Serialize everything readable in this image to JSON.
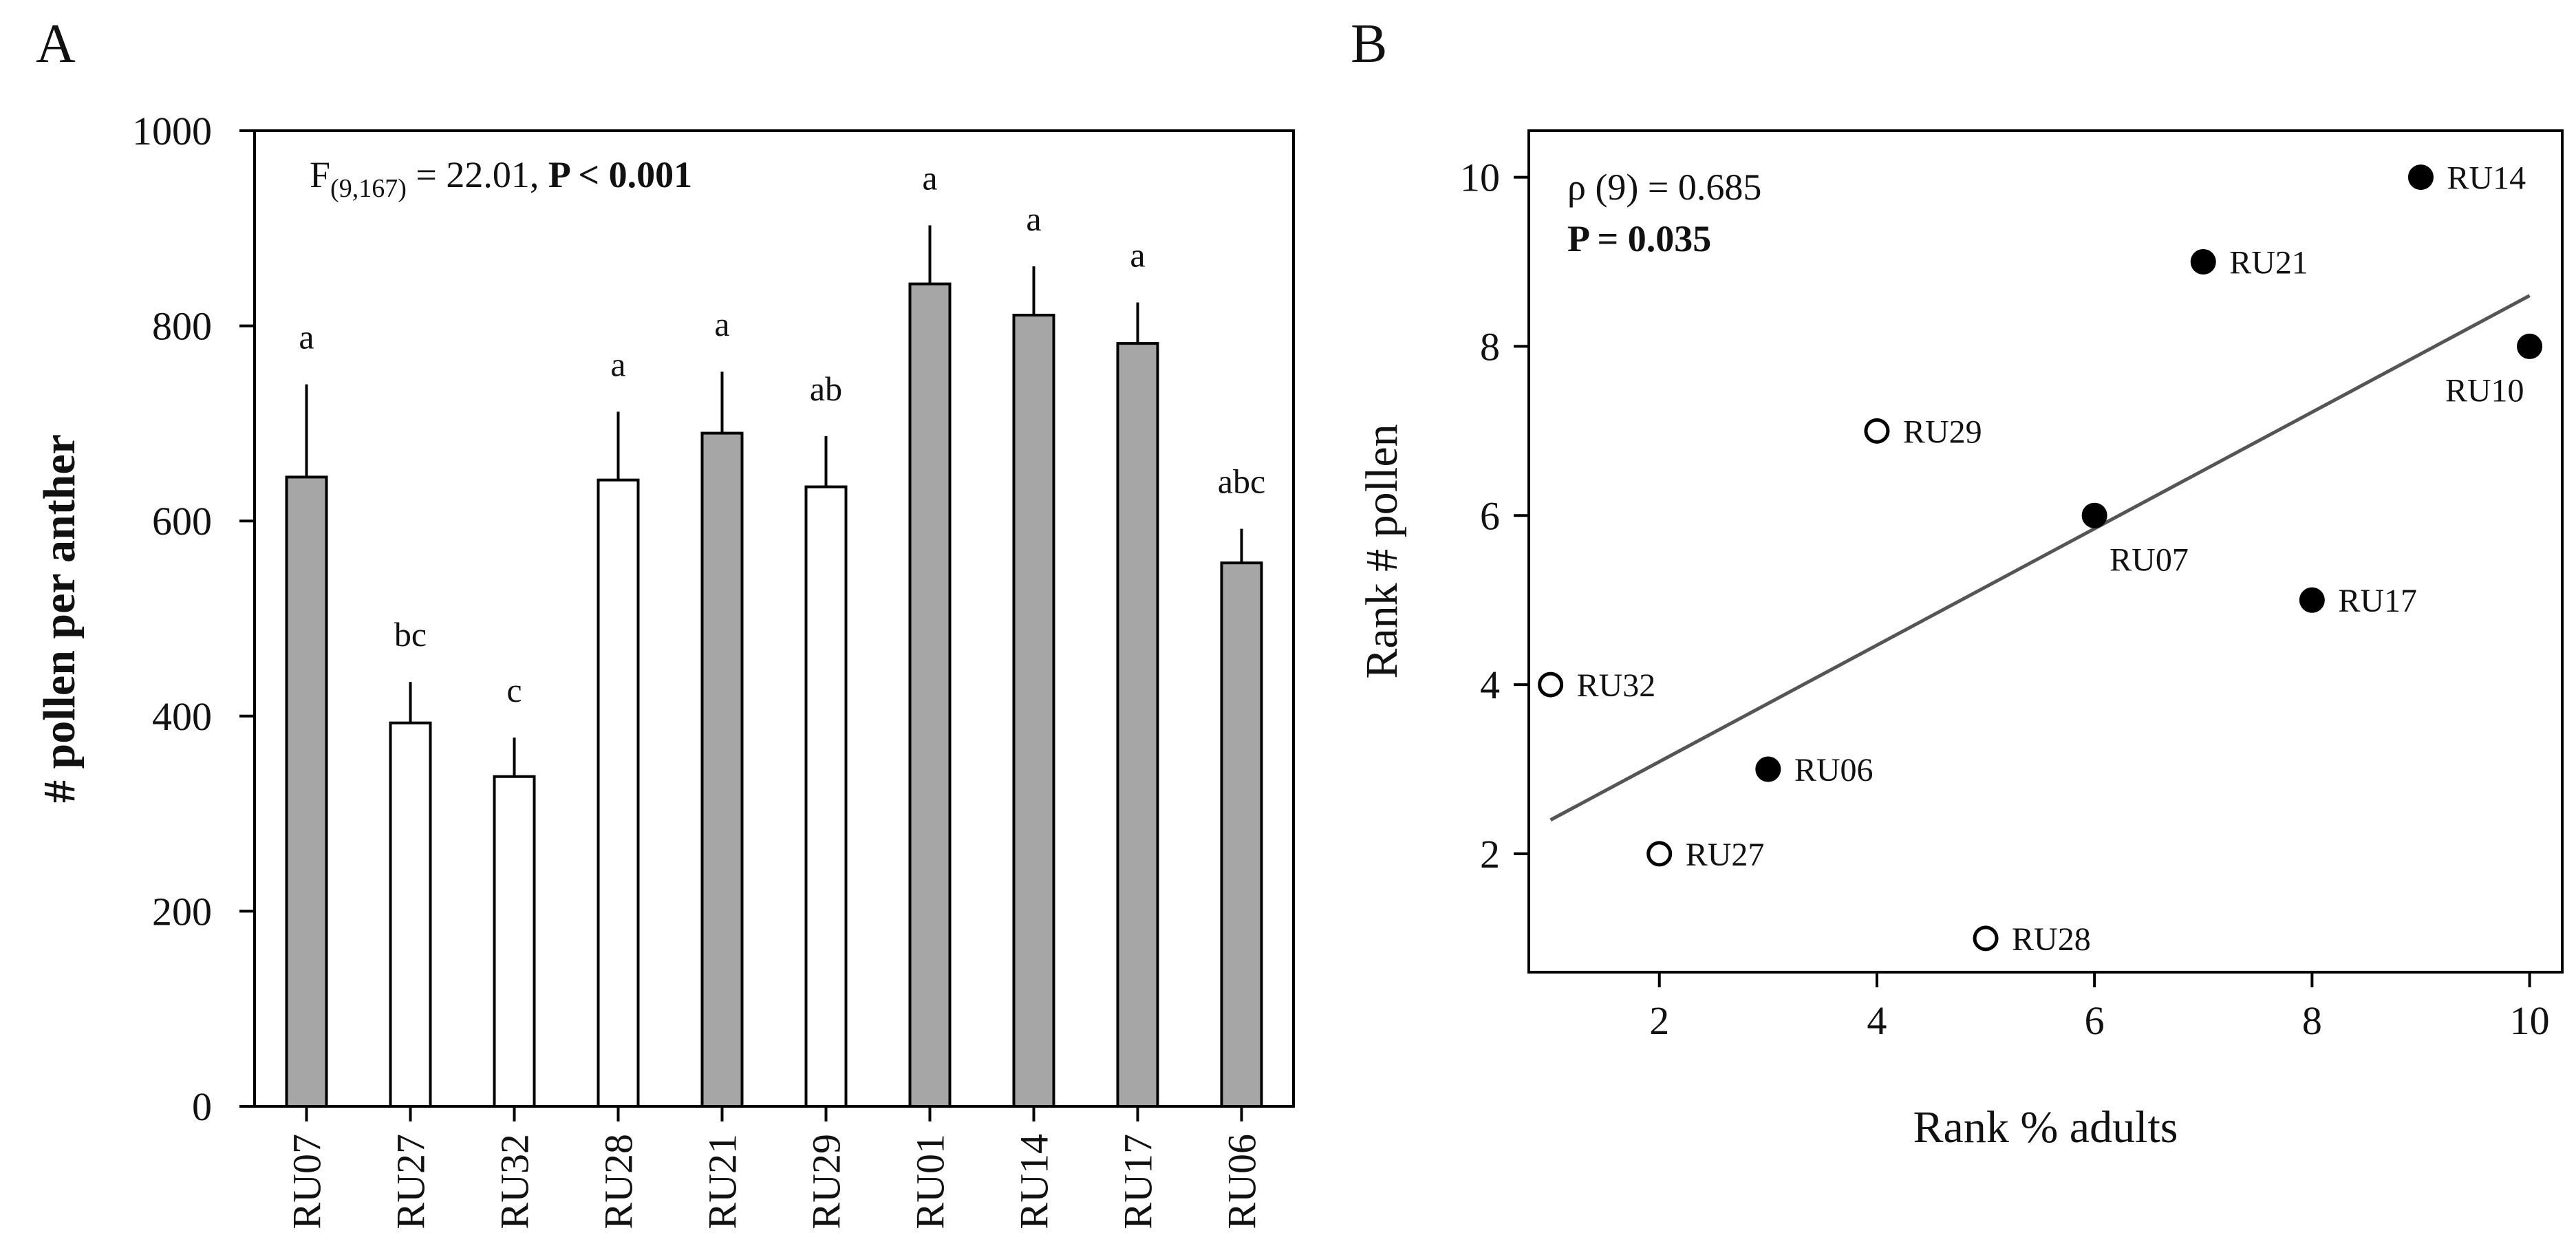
{
  "chart_data": [
    {
      "panel": "A",
      "type": "bar",
      "ylabel": "# pollen per anther",
      "xlabel": "",
      "ylim": [
        0,
        1000
      ],
      "yticks": [
        0,
        200,
        400,
        600,
        800,
        1000
      ],
      "annotation": {
        "f_main": "F",
        "f_sub": "(9,167)",
        "f_rest": " = 22.01, ",
        "p_prefix": "P < ",
        "p_value": "0.001"
      },
      "colors": {
        "gray": "#a6a6a6",
        "white": "#ffffff",
        "stroke": "#000000"
      },
      "bars": [
        {
          "category": "RU07",
          "value": 645,
          "error": 95,
          "group": "gray",
          "letter": "a"
        },
        {
          "category": "RU27",
          "value": 393,
          "error": 42,
          "group": "white",
          "letter": "bc"
        },
        {
          "category": "RU32",
          "value": 338,
          "error": 40,
          "group": "white",
          "letter": "c"
        },
        {
          "category": "RU28",
          "value": 642,
          "error": 70,
          "group": "white",
          "letter": "a"
        },
        {
          "category": "RU21",
          "value": 690,
          "error": 63,
          "group": "gray",
          "letter": "a"
        },
        {
          "category": "RU29",
          "value": 635,
          "error": 52,
          "group": "white",
          "letter": "ab"
        },
        {
          "category": "RU01",
          "value": 843,
          "error": 60,
          "group": "gray",
          "letter": "a"
        },
        {
          "category": "RU14",
          "value": 811,
          "error": 50,
          "group": "gray",
          "letter": "a"
        },
        {
          "category": "RU17",
          "value": 782,
          "error": 42,
          "group": "gray",
          "letter": "a"
        },
        {
          "category": "RU06",
          "value": 557,
          "error": 35,
          "group": "gray",
          "letter": "abc"
        }
      ]
    },
    {
      "panel": "B",
      "type": "scatter",
      "xlabel": "Rank % adults",
      "ylabel": "Rank # pollen",
      "xlim": [
        0.8,
        10.3
      ],
      "ylim": [
        0.6,
        10.55
      ],
      "xticks": [
        2,
        4,
        6,
        8,
        10
      ],
      "yticks": [
        2,
        4,
        6,
        8,
        10
      ],
      "annotation": {
        "rho": "ρ (9) = 0.685",
        "p_prefix": "P = ",
        "p_value": "0.035"
      },
      "regression": {
        "x": [
          1,
          10
        ],
        "y": [
          2.4,
          8.6
        ],
        "color": "#555555"
      },
      "points": [
        {
          "label": "RU14",
          "x": 9,
          "y": 10,
          "filled": true,
          "label_pos": "right"
        },
        {
          "label": "RU21",
          "x": 7,
          "y": 9,
          "filled": true,
          "label_pos": "right"
        },
        {
          "label": "RU10",
          "x": 10,
          "y": 8,
          "filled": true,
          "label_pos": "below-left"
        },
        {
          "label": "RU29",
          "x": 4,
          "y": 7,
          "filled": false,
          "label_pos": "right"
        },
        {
          "label": "RU07",
          "x": 6,
          "y": 6,
          "filled": true,
          "label_pos": "below-right"
        },
        {
          "label": "RU17",
          "x": 8,
          "y": 5,
          "filled": true,
          "label_pos": "right"
        },
        {
          "label": "RU32",
          "x": 1,
          "y": 4,
          "filled": false,
          "label_pos": "right"
        },
        {
          "label": "RU06",
          "x": 3,
          "y": 3,
          "filled": true,
          "label_pos": "right"
        },
        {
          "label": "RU27",
          "x": 2,
          "y": 2,
          "filled": false,
          "label_pos": "right"
        },
        {
          "label": "RU28",
          "x": 5,
          "y": 1,
          "filled": false,
          "label_pos": "right"
        }
      ]
    }
  ]
}
